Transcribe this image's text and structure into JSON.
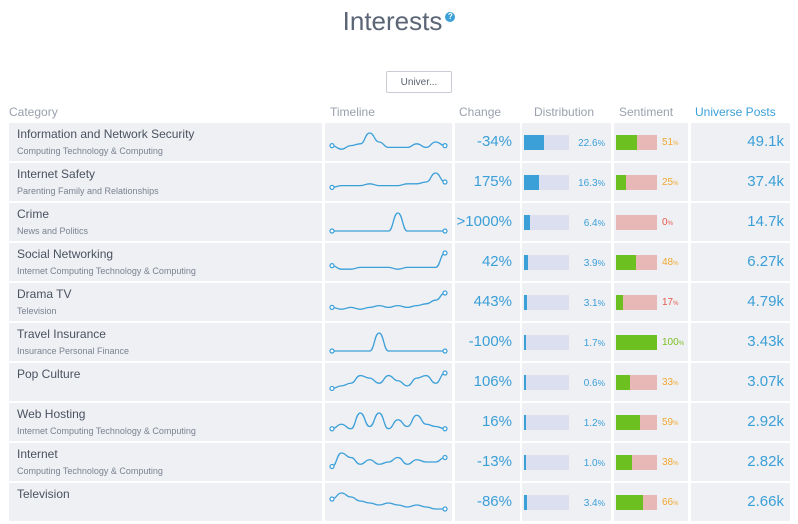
{
  "page": {
    "title": "Interests",
    "help_icon": "question-circle-icon",
    "help_glyph": "?",
    "universe_button": "Univer..."
  },
  "colors": {
    "accent": "#3b9fd8",
    "sentiment_positive": "#6cc020",
    "sentiment_negative": "#e8b8b6",
    "sentiment_high": "#7cbf1e",
    "sentiment_mid": "#f0a830",
    "sentiment_low": "#e8584a"
  },
  "table": {
    "headers": [
      "Category",
      "Timeline",
      "Change",
      "Distribution",
      "Sentiment",
      "Universe Posts"
    ],
    "rows": [
      {
        "name": "Information and Network Security",
        "sub": "Computing Technology & Computing",
        "change": "-34%",
        "dist": "22.6",
        "dist_frac": 0.226,
        "sent": "51",
        "sent_frac": 0.51,
        "posts": "49.1k",
        "sent_color": "mid",
        "timeline": [
          3,
          1,
          3,
          4,
          10,
          5,
          2,
          2,
          2,
          4,
          2,
          5,
          3
        ]
      },
      {
        "name": "Internet Safety",
        "sub": "Parenting Family and Relationships",
        "change": "175%",
        "dist": "16.3",
        "dist_frac": 0.163,
        "sent": "25",
        "sent_frac": 0.25,
        "posts": "37.4k",
        "sent_color": "mid",
        "timeline": [
          2,
          3,
          3,
          3,
          4,
          3,
          3,
          3,
          4,
          4,
          5,
          10,
          5
        ]
      },
      {
        "name": "Crime",
        "sub": "News and Politics",
        "change": ">1000%",
        "dist": "6.4",
        "dist_frac": 0.064,
        "sent": "0",
        "sent_frac": 0.0,
        "posts": "14.7k",
        "sent_color": "low",
        "timeline": [
          0,
          0,
          0,
          0,
          0,
          0,
          0,
          8,
          0,
          0,
          0,
          0,
          0
        ]
      },
      {
        "name": "Social Networking",
        "sub": "Internet Computing Technology & Computing",
        "change": "42%",
        "dist": "3.9",
        "dist_frac": 0.039,
        "sent": "48",
        "sent_frac": 0.48,
        "posts": "6.27k",
        "sent_color": "mid",
        "timeline": [
          3,
          1,
          1,
          2,
          2,
          2,
          2,
          1,
          2,
          2,
          2,
          2,
          10
        ]
      },
      {
        "name": "Drama TV",
        "sub": "Television",
        "change": "443%",
        "dist": "3.1",
        "dist_frac": 0.031,
        "sent": "17",
        "sent_frac": 0.17,
        "posts": "4.79k",
        "sent_color": "low",
        "timeline": [
          2,
          1,
          2,
          1,
          2,
          3,
          2,
          3,
          2,
          3,
          4,
          6,
          10
        ]
      },
      {
        "name": "Travel Insurance",
        "sub": "Insurance Personal Finance",
        "change": "-100%",
        "dist": "1.7",
        "dist_frac": 0.017,
        "sent": "100",
        "sent_frac": 1.0,
        "posts": "3.43k",
        "sent_color": "high",
        "timeline": [
          0,
          0,
          0,
          0,
          0,
          9,
          0,
          0,
          0,
          0,
          0,
          0,
          0
        ]
      },
      {
        "name": "Pop Culture",
        "sub": "",
        "change": "106%",
        "dist": "0.6",
        "dist_frac": 0.006,
        "sent": "33",
        "sent_frac": 0.33,
        "posts": "3.07k",
        "sent_color": "mid",
        "timeline": [
          1,
          2,
          3,
          6,
          5,
          3,
          6,
          4,
          2,
          5,
          6,
          3,
          7
        ]
      },
      {
        "name": "Web Hosting",
        "sub": "Internet Computing Technology & Computing",
        "change": "16%",
        "dist": "1.2",
        "dist_frac": 0.012,
        "sent": "59",
        "sent_frac": 0.59,
        "posts": "2.92k",
        "sent_color": "mid",
        "timeline": [
          1,
          3,
          1,
          8,
          2,
          8,
          1,
          5,
          2,
          7,
          3,
          2,
          1
        ]
      },
      {
        "name": "Internet",
        "sub": "Computing Technology & Computing",
        "change": "-13%",
        "dist": "1.0",
        "dist_frac": 0.01,
        "sent": "38",
        "sent_frac": 0.38,
        "posts": "2.82k",
        "sent_color": "mid",
        "timeline": [
          2,
          8,
          6,
          3,
          5,
          3,
          4,
          6,
          3,
          5,
          4,
          4,
          6
        ]
      },
      {
        "name": "Television",
        "sub": "",
        "change": "-86%",
        "dist": "3.4",
        "dist_frac": 0.034,
        "sent": "66",
        "sent_frac": 0.66,
        "posts": "2.66k",
        "sent_color": "mid",
        "timeline": [
          6,
          9,
          7,
          5,
          4,
          3,
          4,
          3,
          2,
          3,
          2,
          1,
          1
        ]
      }
    ]
  }
}
